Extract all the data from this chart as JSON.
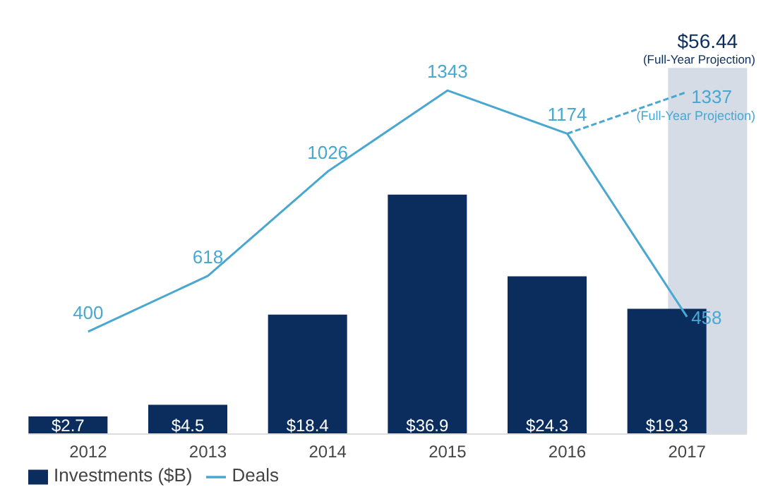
{
  "chart_data": {
    "type": "bar",
    "categories": [
      "2012",
      "2013",
      "2014",
      "2015",
      "2016",
      "2017"
    ],
    "series": [
      {
        "color": "#d5dce6",
        "values": [
          null,
          null,
          null,
          null,
          null,
          56.44
        ],
        "value_labels": [
          null,
          null,
          null,
          null,
          null,
          "$56.44"
        ]
      },
      {
        "name": "Investments ($B)",
        "color": "#0b2d5e",
        "values": [
          2.7,
          4.5,
          18.4,
          36.9,
          24.3,
          19.3
        ],
        "value_labels": [
          "$2.7",
          "$4.5",
          "$18.4",
          "$36.9",
          "$24.3",
          "$19.3"
        ]
      },
      {
        "type": "line",
        "axis": "y2",
        "line_style": "dashed",
        "color": "#4aa8d0",
        "values": [
          null,
          null,
          null,
          null,
          1174,
          1337
        ],
        "value_labels": [
          null,
          null,
          null,
          null,
          null,
          "1337"
        ]
      },
      {
        "type": "line",
        "axis": "y2",
        "name": "Deals",
        "color": "#4aa8d0",
        "values": [
          400,
          618,
          1026,
          1343,
          1174,
          458
        ],
        "value_labels": [
          "400",
          "618",
          "1026",
          "1343",
          "1174",
          "458"
        ]
      }
    ],
    "tick_labels": "x",
    "legend": "bottom left",
    "marker": "none",
    "annotations": [
      "(Full-Year Projection)",
      "(Full-Year Projection)"
    ]
  }
}
